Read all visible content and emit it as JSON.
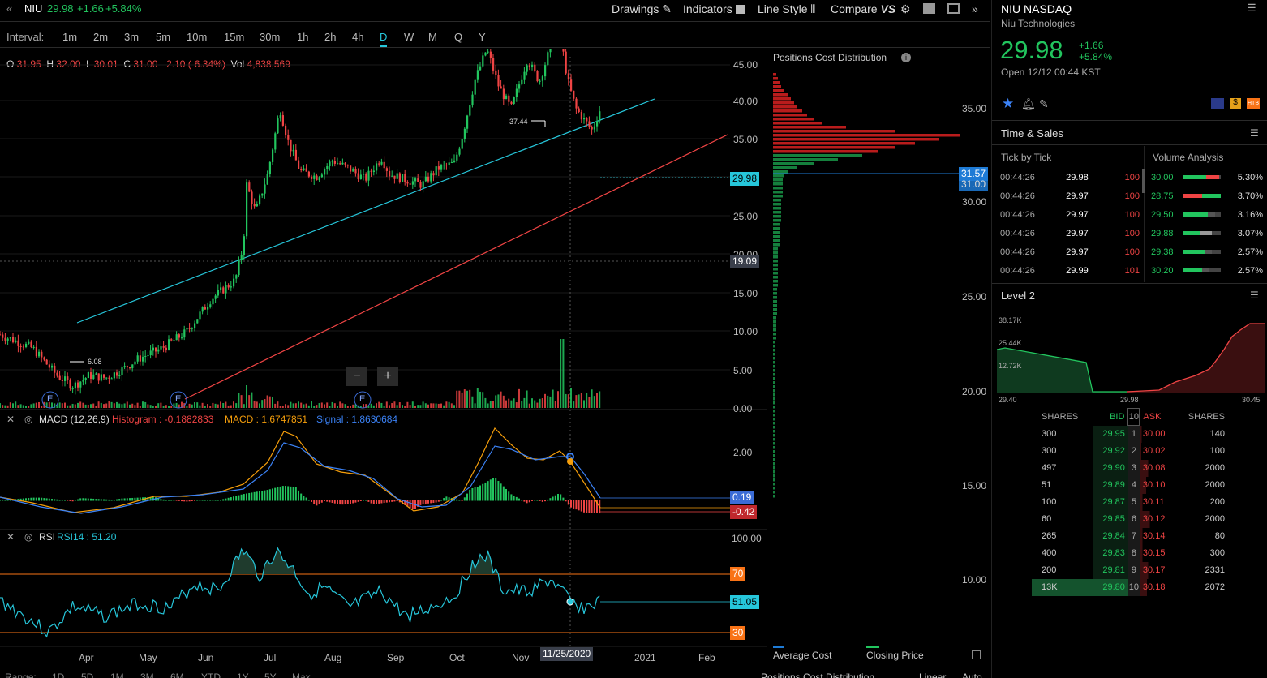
{
  "header": {
    "back": "«",
    "symbol": "NIU",
    "price": "29.98",
    "change": "+1.66",
    "pct": "+5.84%",
    "drawings": "Drawings",
    "indicators": "Indicators",
    "line_style": "Line Style",
    "compare": "Compare",
    "expand": "»"
  },
  "intervals": {
    "label": "Interval:",
    "items": [
      "1m",
      "2m",
      "3m",
      "5m",
      "10m",
      "15m",
      "30m",
      "1h",
      "2h",
      "4h",
      "D",
      "W",
      "M",
      "Q",
      "Y"
    ],
    "active": "D"
  },
  "ohlc": {
    "o_lbl": "O",
    "o": "31.95",
    "h_lbl": "H",
    "h": "32.00",
    "l_lbl": "L",
    "l": "30.01",
    "c_lbl": "C",
    "c": "31.00",
    "chg": "-2.10 (-6.34%)",
    "vol_lbl": "Vol",
    "vol": "4,838,569"
  },
  "price_axis": [
    "45.00",
    "40.00",
    "35.00",
    "30.00",
    "25.00",
    "20.00",
    "15.00",
    "10.00",
    "5.00",
    "0.00"
  ],
  "price_tags": {
    "last": "29.98",
    "cross": "19.09"
  },
  "annotations": {
    "high": "37.44",
    "low": "6.08"
  },
  "zoom": {
    "minus": "−",
    "plus": "+"
  },
  "earnings": [
    "E",
    "E",
    "E"
  ],
  "macd": {
    "label": "MACD (12,26,9)",
    "hist": "Histogram : -0.1882833",
    "macd": "MACD : 1.6747851",
    "signal": "Signal : 1.8630684",
    "axis": "2.00",
    "tag_signal": "0.19",
    "tag_hist": "-0.42"
  },
  "rsi": {
    "label": "RSI",
    "value": "RSI14 : 51.20",
    "axis": "100.00",
    "upper": "70",
    "tag": "51.05",
    "lower": "30"
  },
  "time_axis": [
    "Apr",
    "May",
    "Jun",
    "Jul",
    "Aug",
    "Sep",
    "Oct",
    "Nov",
    "2021",
    "Feb"
  ],
  "crosshair_date": "11/25/2020",
  "ranges": [
    "Range:",
    "1D",
    "5D",
    "1M",
    "3M",
    "6M",
    "YTD",
    "1Y",
    "5Y",
    "Max"
  ],
  "pcd": {
    "title": "Positions Cost Distribution",
    "axis": [
      "35.00",
      "30.00",
      "25.00",
      "20.00",
      "15.00",
      "10.00"
    ],
    "tag1": "31.57",
    "tag2": "31.00",
    "legend_avg": "Average Cost",
    "legend_close": "Closing Price",
    "bottom": "Positions Cost Distribution",
    "scale": "Linear",
    "auto": "Auto"
  },
  "quote": {
    "title": "NIU NASDAQ",
    "name": "Niu Technologies",
    "price": "29.98",
    "change": "+1.66",
    "pct": "+5.84%",
    "open": "Open 12/12 00:44 KST"
  },
  "time_sales": {
    "title": "Time & Sales",
    "tab1": "Tick by Tick",
    "tab2": "Volume Analysis",
    "ticks": [
      [
        "00:44:26",
        "29.98",
        "100"
      ],
      [
        "00:44:26",
        "29.97",
        "100"
      ],
      [
        "00:44:26",
        "29.97",
        "100"
      ],
      [
        "00:44:26",
        "29.97",
        "100"
      ],
      [
        "00:44:26",
        "29.97",
        "100"
      ],
      [
        "00:44:26",
        "29.99",
        "101"
      ]
    ],
    "vol": [
      [
        "30.00",
        "5.30%"
      ],
      [
        "28.75",
        "3.70%"
      ],
      [
        "29.50",
        "3.16%"
      ],
      [
        "29.88",
        "3.07%"
      ],
      [
        "29.38",
        "2.57%"
      ],
      [
        "30.20",
        "2.57%"
      ]
    ]
  },
  "level2": {
    "title": "Level 2",
    "y": [
      "38.17K",
      "25.44K",
      "12.72K"
    ],
    "x": [
      "29.40",
      "29.98",
      "30.45"
    ],
    "head": [
      "SHARES",
      "BID",
      "10",
      "ASK",
      "SHARES"
    ],
    "rows": [
      [
        "300",
        "29.95",
        "1",
        "30.00",
        "140"
      ],
      [
        "300",
        "29.92",
        "2",
        "30.02",
        "100"
      ],
      [
        "497",
        "29.90",
        "3",
        "30.08",
        "2000"
      ],
      [
        "51",
        "29.89",
        "4",
        "30.10",
        "2000"
      ],
      [
        "100",
        "29.87",
        "5",
        "30.11",
        "200"
      ],
      [
        "60",
        "29.85",
        "6",
        "30.12",
        "2000"
      ],
      [
        "265",
        "29.84",
        "7",
        "30.14",
        "80"
      ],
      [
        "400",
        "29.83",
        "8",
        "30.15",
        "300"
      ],
      [
        "200",
        "29.81",
        "9",
        "30.17",
        "2331"
      ],
      [
        "13K",
        "29.80",
        "10",
        "30.18",
        "2072"
      ]
    ]
  },
  "colors": {
    "up": "#22c55e",
    "down": "#ef4444",
    "teal": "#26c6da",
    "blue": "#3b82f6"
  }
}
